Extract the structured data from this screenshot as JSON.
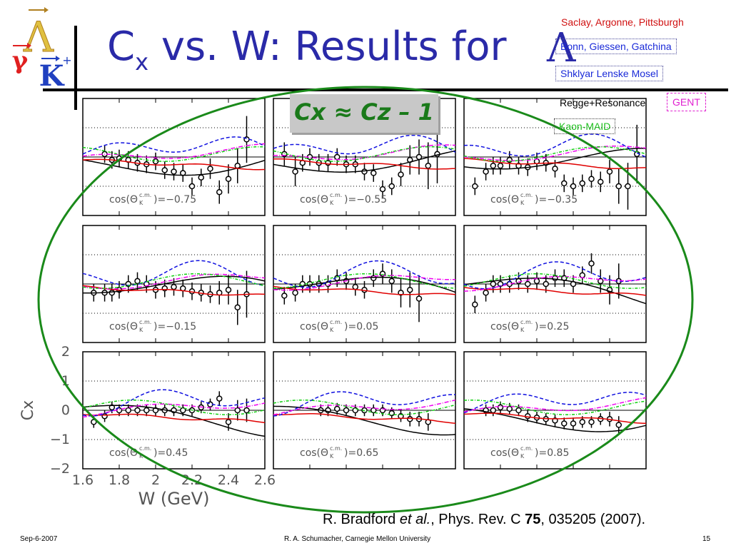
{
  "title": {
    "main_prefix": "C",
    "main_sub": "x",
    "main_rest": " vs. W: Results for ",
    "lambda": "Λ"
  },
  "logo": {
    "gamma": "γ",
    "lambda": "Λ",
    "kaon": "K",
    "kaon_charge": "+",
    "arrow": "→"
  },
  "legend": {
    "items": [
      {
        "label": "Saclay, Argonne, Pittsburgh",
        "color": "#d01010"
      },
      {
        "label": "Bonn, Giessen, Gatchina",
        "color": "#1a2ad8"
      },
      {
        "label": "Shklyar Lenske Mosel",
        "color": "#1a2ad8"
      },
      {
        "label": "Regge+Resonance",
        "color": "#000000"
      },
      {
        "label": "GENT",
        "color": "#e020d0"
      },
      {
        "label": "Kaon-MAID",
        "color": "#20c020"
      }
    ]
  },
  "badge": {
    "text": "Cx ≈ Cz – 1"
  },
  "citation": {
    "authors": "R. Bradford ",
    "etal": "et al.",
    "journal": ", Phys. Rev. C ",
    "volume": "75",
    "rest": ", 035205 (2007)."
  },
  "footer": {
    "date": "Sep-6-2007",
    "author": "R. A. Schumacher, Carnegie Mellon University",
    "page": "15"
  },
  "chart_data": {
    "type": "scatter",
    "xlabel": "W (GeV)",
    "ylabel": "Cx",
    "xlim": [
      1.6,
      2.6
    ],
    "ylim": [
      -2,
      2
    ],
    "x_ticks": [
      "1.6",
      "1.8",
      "2",
      "2.2",
      "2.4",
      "2.6"
    ],
    "y_ticks": [
      "2",
      "1",
      "0",
      "−1",
      "−2"
    ],
    "colors": {
      "black": "#000000",
      "red": "#e00000",
      "blue": "#1010e0",
      "green": "#10d010",
      "magenta": "#f000f0"
    },
    "panels": [
      {
        "label": "cos(Θ",
        "sub": "K",
        "sup": "c.m.",
        "value": ")=−0.75",
        "points": [
          [
            1.72,
            0.1
          ],
          [
            1.76,
            -0.1
          ],
          [
            1.8,
            -0.05
          ],
          [
            1.85,
            -0.1
          ],
          [
            1.9,
            -0.2
          ],
          [
            1.95,
            -0.25
          ],
          [
            2.0,
            -0.15
          ],
          [
            2.05,
            -0.45
          ],
          [
            2.1,
            -0.5
          ],
          [
            2.15,
            -0.55
          ],
          [
            2.2,
            -1.0
          ],
          [
            2.25,
            -0.7
          ],
          [
            2.3,
            -0.4
          ],
          [
            2.35,
            -1.2
          ],
          [
            2.4,
            -0.75
          ],
          [
            2.45,
            -0.3
          ],
          [
            2.5,
            0.6
          ]
        ],
        "errs": [
          0.3,
          0.3,
          0.3,
          0.3,
          0.3,
          0.3,
          0.3,
          0.3,
          0.3,
          0.3,
          0.3,
          0.3,
          0.35,
          0.4,
          0.5,
          0.6,
          0.8
        ]
      },
      {
        "label": "cos(Θ",
        "sub": "K",
        "sup": "c.m.",
        "value": ")=−0.55",
        "points": [
          [
            1.66,
            0.1
          ],
          [
            1.72,
            -0.5
          ],
          [
            1.76,
            -0.2
          ],
          [
            1.8,
            0.0
          ],
          [
            1.85,
            -0.2
          ],
          [
            1.9,
            -0.2
          ],
          [
            1.95,
            0.0
          ],
          [
            2.0,
            -0.25
          ],
          [
            2.05,
            -0.25
          ],
          [
            2.1,
            -0.5
          ],
          [
            2.15,
            -0.55
          ],
          [
            2.2,
            -1.1
          ],
          [
            2.25,
            -1.0
          ],
          [
            2.3,
            -0.6
          ],
          [
            2.35,
            -0.1
          ],
          [
            2.4,
            0.0
          ],
          [
            2.45,
            -0.3
          ],
          [
            2.5,
            0.1
          ]
        ],
        "errs": [
          0.4,
          0.5,
          0.3,
          0.3,
          0.3,
          0.3,
          0.3,
          0.3,
          0.3,
          0.3,
          0.3,
          0.3,
          0.3,
          0.4,
          0.5,
          0.6,
          0.8,
          1.0
        ]
      },
      {
        "label": "cos(Θ",
        "sub": "K",
        "sup": "c.m.",
        "value": ")=−0.35",
        "points": [
          [
            1.66,
            -1.0
          ],
          [
            1.72,
            -0.5
          ],
          [
            1.76,
            -0.3
          ],
          [
            1.8,
            -0.3
          ],
          [
            1.85,
            -0.1
          ],
          [
            1.9,
            -0.3
          ],
          [
            1.95,
            -0.35
          ],
          [
            2.0,
            -0.15
          ],
          [
            2.05,
            -0.2
          ],
          [
            2.1,
            -0.4
          ],
          [
            2.15,
            -0.9
          ],
          [
            2.2,
            -1.0
          ],
          [
            2.25,
            -0.9
          ],
          [
            2.3,
            -0.75
          ],
          [
            2.35,
            -0.85
          ],
          [
            2.4,
            -0.5
          ],
          [
            2.45,
            -1.0
          ],
          [
            2.5,
            -1.0
          ],
          [
            2.55,
            0.1
          ]
        ],
        "errs": [
          0.3,
          0.3,
          0.3,
          0.3,
          0.3,
          0.3,
          0.3,
          0.3,
          0.3,
          0.3,
          0.3,
          0.3,
          0.3,
          0.3,
          0.35,
          0.4,
          0.6,
          0.8,
          1.0
        ]
      },
      {
        "label": "cos(Θ",
        "sub": "K",
        "sup": "c.m.",
        "value": ")=−0.15",
        "points": [
          [
            1.66,
            -0.3
          ],
          [
            1.72,
            -0.3
          ],
          [
            1.76,
            -0.3
          ],
          [
            1.8,
            -0.2
          ],
          [
            1.85,
            0.0
          ],
          [
            1.9,
            0.1
          ],
          [
            1.95,
            0.0
          ],
          [
            2.0,
            -0.2
          ],
          [
            2.05,
            -0.15
          ],
          [
            2.1,
            -0.1
          ],
          [
            2.15,
            -0.15
          ],
          [
            2.2,
            -0.25
          ],
          [
            2.25,
            -0.3
          ],
          [
            2.3,
            -0.35
          ],
          [
            2.35,
            -0.3
          ],
          [
            2.4,
            -0.2
          ],
          [
            2.45,
            -0.8
          ],
          [
            2.5,
            -0.35
          ]
        ],
        "errs": [
          0.3,
          0.3,
          0.3,
          0.3,
          0.3,
          0.3,
          0.3,
          0.3,
          0.3,
          0.3,
          0.3,
          0.3,
          0.3,
          0.3,
          0.4,
          0.5,
          0.6,
          0.8
        ]
      },
      {
        "label": "cos(Θ",
        "sub": "K",
        "sup": "c.m.",
        "value": ")=0.05",
        "points": [
          [
            1.66,
            -0.4
          ],
          [
            1.72,
            -0.3
          ],
          [
            1.76,
            0.0
          ],
          [
            1.8,
            0.0
          ],
          [
            1.85,
            0.0
          ],
          [
            1.9,
            0.0
          ],
          [
            1.95,
            0.2
          ],
          [
            2.0,
            0.1
          ],
          [
            2.05,
            -0.1
          ],
          [
            2.1,
            -0.2
          ],
          [
            2.15,
            0.2
          ],
          [
            2.2,
            0.35
          ],
          [
            2.25,
            0.1
          ],
          [
            2.3,
            -0.3
          ],
          [
            2.35,
            -0.2
          ],
          [
            2.4,
            -0.5
          ]
        ],
        "errs": [
          0.3,
          0.3,
          0.3,
          0.3,
          0.3,
          0.3,
          0.3,
          0.3,
          0.3,
          0.3,
          0.3,
          0.35,
          0.4,
          0.5,
          0.6,
          0.8
        ]
      },
      {
        "label": "cos(Θ",
        "sub": "K",
        "sup": "c.m.",
        "value": ")=0.25",
        "points": [
          [
            1.66,
            -0.7
          ],
          [
            1.72,
            -0.3
          ],
          [
            1.76,
            0.0
          ],
          [
            1.8,
            0.0
          ],
          [
            1.85,
            0.0
          ],
          [
            1.9,
            0.1
          ],
          [
            1.95,
            0.0
          ],
          [
            2.0,
            0.1
          ],
          [
            2.05,
            0.0
          ],
          [
            2.1,
            0.2
          ],
          [
            2.15,
            0.2
          ],
          [
            2.2,
            0.0
          ],
          [
            2.25,
            0.3
          ],
          [
            2.3,
            0.7
          ],
          [
            2.35,
            0.1
          ],
          [
            2.4,
            -0.2
          ],
          [
            2.45,
            0.1
          ]
        ],
        "errs": [
          0.3,
          0.3,
          0.3,
          0.3,
          0.3,
          0.3,
          0.3,
          0.3,
          0.3,
          0.3,
          0.3,
          0.3,
          0.3,
          0.35,
          0.4,
          0.5,
          0.6
        ]
      },
      {
        "label": "cos(Θ",
        "sub": "K",
        "sup": "c.m.",
        "value": ")=0.45",
        "points": [
          [
            1.66,
            -0.4
          ],
          [
            1.72,
            -0.2
          ],
          [
            1.76,
            0.1
          ],
          [
            1.8,
            0.0
          ],
          [
            1.85,
            0.0
          ],
          [
            1.9,
            0.0
          ],
          [
            1.95,
            0.0
          ],
          [
            2.0,
            0.0
          ],
          [
            2.05,
            0.0
          ],
          [
            2.1,
            0.0
          ],
          [
            2.15,
            0.0
          ],
          [
            2.2,
            0.0
          ],
          [
            2.25,
            0.1
          ],
          [
            2.3,
            0.2
          ],
          [
            2.35,
            0.4
          ],
          [
            2.4,
            -0.4
          ],
          [
            2.45,
            0.0
          ],
          [
            2.5,
            0.0
          ]
        ],
        "errs": [
          0.2,
          0.2,
          0.2,
          0.2,
          0.2,
          0.2,
          0.2,
          0.2,
          0.2,
          0.2,
          0.2,
          0.2,
          0.2,
          0.2,
          0.25,
          0.3,
          0.35,
          0.4
        ]
      },
      {
        "label": "cos(Θ",
        "sub": "K",
        "sup": "c.m.",
        "value": ")=0.65",
        "points": [
          [
            1.86,
            0.0
          ],
          [
            1.9,
            0.0
          ],
          [
            1.95,
            0.05
          ],
          [
            2.0,
            0.0
          ],
          [
            2.05,
            0.0
          ],
          [
            2.1,
            0.0
          ],
          [
            2.15,
            0.0
          ],
          [
            2.2,
            0.0
          ],
          [
            2.25,
            -0.1
          ],
          [
            2.3,
            -0.2
          ],
          [
            2.35,
            -0.3
          ],
          [
            2.4,
            -0.3
          ],
          [
            2.45,
            -0.4
          ]
        ],
        "errs": [
          0.2,
          0.2,
          0.2,
          0.2,
          0.2,
          0.2,
          0.2,
          0.2,
          0.2,
          0.2,
          0.25,
          0.25,
          0.3
        ]
      },
      {
        "label": "cos(Θ",
        "sub": "K",
        "sup": "c.m.",
        "value": ")=0.85",
        "points": [
          [
            1.72,
            0.0
          ],
          [
            1.76,
            0.0
          ],
          [
            1.8,
            0.1
          ],
          [
            1.85,
            0.05
          ],
          [
            1.9,
            0.0
          ],
          [
            1.95,
            -0.2
          ],
          [
            2.0,
            -0.25
          ],
          [
            2.05,
            -0.3
          ],
          [
            2.1,
            -0.35
          ],
          [
            2.15,
            -0.45
          ],
          [
            2.2,
            -0.45
          ],
          [
            2.25,
            -0.4
          ],
          [
            2.3,
            -0.4
          ],
          [
            2.35,
            -0.3
          ],
          [
            2.4,
            -0.3
          ],
          [
            2.45,
            -0.5
          ]
        ],
        "errs": [
          0.2,
          0.2,
          0.2,
          0.2,
          0.2,
          0.2,
          0.2,
          0.2,
          0.2,
          0.2,
          0.2,
          0.2,
          0.2,
          0.2,
          0.25,
          0.3
        ]
      }
    ]
  }
}
